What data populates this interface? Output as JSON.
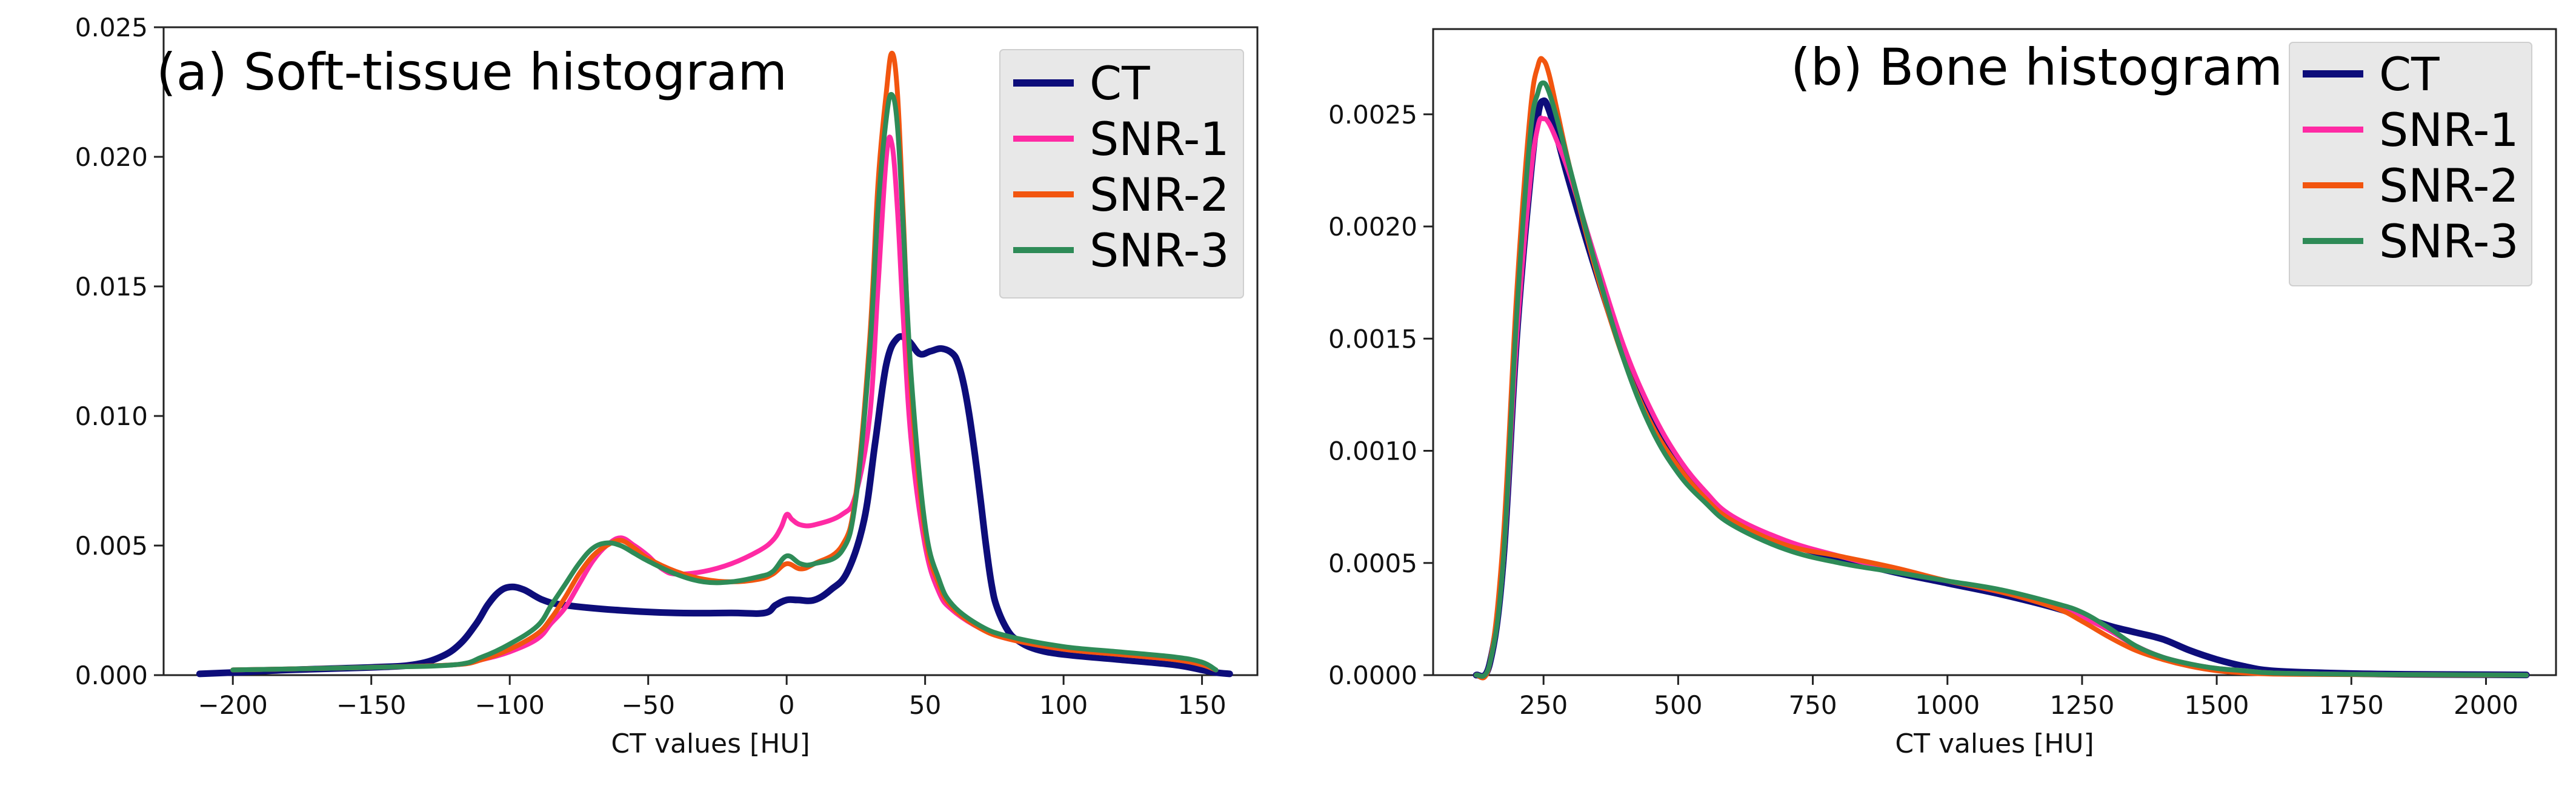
{
  "colors": {
    "CT": "#0d0d7a",
    "SNR-1": "#ff2aa4",
    "SNR-2": "#f2550f",
    "SNR-3": "#2e8b57",
    "legend_bg": "#e8e8e8",
    "axis": "#222222"
  },
  "chart_data": [
    {
      "type": "line",
      "annotation": "(a) Soft-tissue histogram",
      "xlabel": "CT values [HU]",
      "ylabel": "",
      "xlim": [
        -225,
        170
      ],
      "ylim": [
        0,
        0.025
      ],
      "xticks": [
        -200,
        -150,
        -100,
        -50,
        0,
        50,
        100,
        150
      ],
      "xtick_labels": [
        "−200",
        "−150",
        "−100",
        "−50",
        "0",
        "50",
        "100",
        "150"
      ],
      "yticks": [
        0,
        0.005,
        0.01,
        0.015,
        0.02,
        0.025
      ],
      "ytick_labels": [
        "0.000",
        "0.005",
        "0.010",
        "0.015",
        "0.020",
        "0.025"
      ],
      "legend": [
        "CT",
        "SNR-1",
        "SNR-2",
        "SNR-3"
      ],
      "legend_position": "top-right",
      "series": [
        {
          "name": "CT",
          "x": [
            -212,
            -200,
            -180,
            -150,
            -135,
            -125,
            -118,
            -112,
            -108,
            -104,
            -100,
            -95,
            -88,
            -80,
            -60,
            -40,
            -20,
            -8,
            -4,
            0,
            4,
            10,
            16,
            22,
            28,
            32,
            36,
            40,
            44,
            48,
            52,
            56,
            60,
            62,
            64,
            66,
            68,
            70,
            72,
            74,
            76,
            80,
            84,
            90,
            100,
            120,
            140,
            150,
            155,
            160
          ],
          "y": [
            5e-05,
            0.0001,
            0.0002,
            0.0003,
            0.0004,
            0.0007,
            0.0012,
            0.002,
            0.0027,
            0.0032,
            0.0034,
            0.0033,
            0.0029,
            0.0027,
            0.0025,
            0.0024,
            0.0024,
            0.0024,
            0.0027,
            0.0029,
            0.0029,
            0.0029,
            0.0033,
            0.004,
            0.006,
            0.009,
            0.012,
            0.013,
            0.0129,
            0.0124,
            0.0125,
            0.0126,
            0.0124,
            0.012,
            0.0112,
            0.01,
            0.0085,
            0.0068,
            0.005,
            0.0035,
            0.0026,
            0.0017,
            0.0013,
            0.001,
            0.0008,
            0.0006,
            0.0004,
            0.0002,
            0.0001,
            5e-05
          ]
        },
        {
          "name": "SNR-1",
          "x": [
            -200,
            -150,
            -120,
            -110,
            -100,
            -90,
            -85,
            -80,
            -75,
            -70,
            -65,
            -60,
            -55,
            -50,
            -45,
            -40,
            -30,
            -20,
            -10,
            -5,
            -2,
            0,
            2,
            5,
            10,
            20,
            25,
            30,
            33,
            36,
            38,
            40,
            42,
            45,
            50,
            55,
            60,
            70,
            80,
            100,
            120,
            140,
            150,
            155
          ],
          "y": [
            0.0002,
            0.0003,
            0.0004,
            0.0006,
            0.0009,
            0.0014,
            0.002,
            0.0026,
            0.0035,
            0.0044,
            0.005,
            0.0053,
            0.005,
            0.0046,
            0.0041,
            0.0039,
            0.004,
            0.0043,
            0.0048,
            0.0052,
            0.0057,
            0.0062,
            0.006,
            0.0058,
            0.0058,
            0.0062,
            0.007,
            0.01,
            0.015,
            0.02,
            0.0205,
            0.018,
            0.014,
            0.009,
            0.005,
            0.0032,
            0.0025,
            0.0018,
            0.0014,
            0.001,
            0.0008,
            0.0006,
            0.0004,
            0.0002
          ]
        },
        {
          "name": "SNR-2",
          "x": [
            -200,
            -150,
            -120,
            -110,
            -100,
            -90,
            -85,
            -80,
            -75,
            -70,
            -65,
            -60,
            -55,
            -50,
            -40,
            -30,
            -20,
            -10,
            -5,
            0,
            5,
            10,
            20,
            25,
            30,
            33,
            36,
            38,
            40,
            42,
            45,
            50,
            55,
            60,
            70,
            80,
            100,
            120,
            140,
            150,
            155
          ],
          "y": [
            0.0002,
            0.0003,
            0.0004,
            0.0006,
            0.001,
            0.0016,
            0.0022,
            0.003,
            0.0039,
            0.0046,
            0.005,
            0.0052,
            0.0049,
            0.0045,
            0.004,
            0.0037,
            0.0036,
            0.0037,
            0.0039,
            0.0043,
            0.0041,
            0.0043,
            0.005,
            0.007,
            0.013,
            0.019,
            0.0225,
            0.024,
            0.0225,
            0.018,
            0.011,
            0.0055,
            0.0035,
            0.0026,
            0.0018,
            0.0014,
            0.001,
            0.0008,
            0.0006,
            0.0004,
            0.0002
          ]
        },
        {
          "name": "SNR-3",
          "x": [
            -200,
            -150,
            -120,
            -110,
            -100,
            -90,
            -85,
            -80,
            -75,
            -70,
            -65,
            -60,
            -55,
            -50,
            -40,
            -30,
            -20,
            -10,
            -5,
            0,
            5,
            10,
            20,
            25,
            30,
            33,
            36,
            38,
            40,
            42,
            45,
            50,
            55,
            60,
            70,
            80,
            100,
            120,
            140,
            150,
            155
          ],
          "y": [
            0.0002,
            0.0003,
            0.0004,
            0.0007,
            0.0012,
            0.0019,
            0.0027,
            0.0035,
            0.0043,
            0.0049,
            0.0051,
            0.005,
            0.0047,
            0.0044,
            0.0039,
            0.0036,
            0.0036,
            0.0038,
            0.004,
            0.0046,
            0.0043,
            0.0043,
            0.0048,
            0.0068,
            0.0125,
            0.018,
            0.0215,
            0.0224,
            0.0212,
            0.0175,
            0.0115,
            0.0058,
            0.0037,
            0.0027,
            0.0019,
            0.0015,
            0.0011,
            0.0009,
            0.0007,
            0.0005,
            0.0002
          ]
        }
      ]
    },
    {
      "type": "line",
      "annotation": "(b) Bone histogram",
      "xlabel": "CT values [HU]",
      "ylabel": "",
      "xlim": [
        45,
        2130
      ],
      "ylim": [
        0,
        0.00288
      ],
      "xticks": [
        250,
        500,
        750,
        1000,
        1250,
        1500,
        1750,
        2000
      ],
      "xtick_labels": [
        "250",
        "500",
        "750",
        "1000",
        "1250",
        "1500",
        "1750",
        "2000"
      ],
      "yticks": [
        0,
        0.0005,
        0.001,
        0.0015,
        0.002,
        0.0025
      ],
      "ytick_labels": [
        "0.0000",
        "0.0005",
        "0.0010",
        "0.0015",
        "0.0020",
        "0.0025"
      ],
      "legend": [
        "CT",
        "SNR-1",
        "SNR-2",
        "SNR-3"
      ],
      "legend_position": "top-right",
      "series": [
        {
          "name": "CT",
          "x": [
            125,
            150,
            175,
            200,
            225,
            240,
            250,
            260,
            275,
            300,
            350,
            400,
            450,
            500,
            550,
            600,
            700,
            800,
            900,
            1000,
            1100,
            1200,
            1250,
            1300,
            1350,
            1400,
            1450,
            1500,
            1550,
            1600,
            1700,
            1800,
            1900,
            2000,
            2075
          ],
          "y": [
            0,
            5e-05,
            0.0005,
            0.0015,
            0.0022,
            0.0025,
            0.00256,
            0.00252,
            0.0024,
            0.00218,
            0.00178,
            0.00142,
            0.00114,
            0.00094,
            0.0008,
            0.0007,
            0.00059,
            0.00052,
            0.00046,
            0.00041,
            0.00036,
            0.0003,
            0.00026,
            0.00022,
            0.00019,
            0.00016,
            0.00011,
            7e-05,
            4e-05,
            2e-05,
            1e-05,
            5e-06,
            3e-06,
            2e-06,
            1e-06
          ]
        },
        {
          "name": "SNR-1",
          "x": [
            125,
            150,
            175,
            200,
            225,
            240,
            250,
            260,
            275,
            300,
            350,
            400,
            450,
            500,
            550,
            600,
            700,
            800,
            900,
            1000,
            1100,
            1200,
            1250,
            1300,
            1350,
            1400,
            1450,
            1500,
            1550,
            1600,
            1700,
            1800,
            1900,
            2000,
            2075
          ],
          "y": [
            0,
            5e-05,
            0.0005,
            0.0015,
            0.0022,
            0.00245,
            0.00248,
            0.00246,
            0.00238,
            0.00222,
            0.00183,
            0.00146,
            0.00118,
            0.00097,
            0.00082,
            0.00071,
            0.0006,
            0.00053,
            0.00047,
            0.00042,
            0.00037,
            0.00031,
            0.00026,
            0.0002,
            0.00013,
            8e-05,
            5e-05,
            3e-05,
            2e-05,
            1e-05,
            5e-06,
            3e-06,
            2e-06,
            1e-06,
            0
          ]
        },
        {
          "name": "SNR-2",
          "x": [
            125,
            150,
            175,
            200,
            225,
            240,
            250,
            260,
            275,
            300,
            350,
            400,
            450,
            500,
            550,
            600,
            700,
            800,
            900,
            1000,
            1100,
            1200,
            1250,
            1300,
            1350,
            1400,
            1450,
            1500,
            1550,
            1600,
            1700,
            1800,
            1900,
            2000,
            2075
          ],
          "y": [
            0,
            5e-05,
            0.0006,
            0.0017,
            0.0025,
            0.00272,
            0.00274,
            0.00268,
            0.00252,
            0.00225,
            0.00178,
            0.0014,
            0.00112,
            0.00093,
            0.00079,
            0.00069,
            0.00058,
            0.00053,
            0.00048,
            0.00042,
            0.00037,
            0.0003,
            0.00024,
            0.00017,
            0.00011,
            7e-05,
            4e-05,
            2e-05,
            1e-05,
            5e-06,
            3e-06,
            2e-06,
            1e-06,
            0,
            0
          ]
        },
        {
          "name": "SNR-3",
          "x": [
            125,
            150,
            175,
            200,
            225,
            240,
            250,
            260,
            275,
            300,
            350,
            400,
            450,
            500,
            550,
            600,
            700,
            800,
            900,
            1000,
            1100,
            1200,
            1250,
            1300,
            1350,
            1400,
            1450,
            1500,
            1550,
            1600,
            1700,
            1800,
            1900,
            2000,
            2075
          ],
          "y": [
            0,
            5e-05,
            0.0005,
            0.0016,
            0.0024,
            0.0026,
            0.00264,
            0.0026,
            0.00248,
            0.00225,
            0.0018,
            0.0014,
            0.0011,
            0.0009,
            0.00077,
            0.00067,
            0.00056,
            0.0005,
            0.00046,
            0.00042,
            0.00038,
            0.00032,
            0.00028,
            0.00021,
            0.00013,
            8e-05,
            5e-05,
            3e-05,
            2e-05,
            1e-05,
            5e-06,
            3e-06,
            2e-06,
            1e-06,
            0
          ]
        }
      ]
    }
  ]
}
